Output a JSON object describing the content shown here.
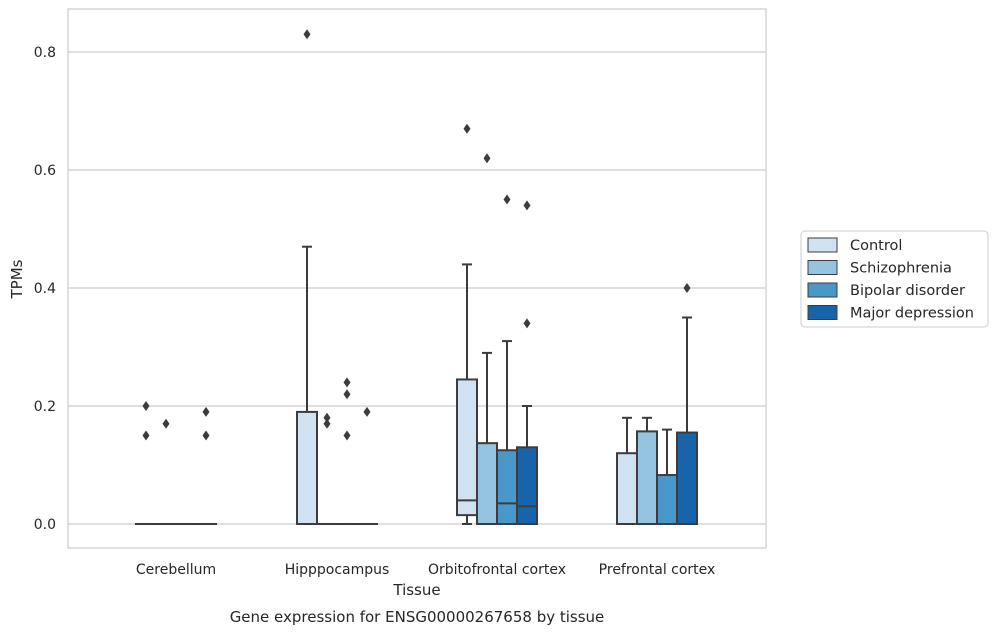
{
  "chart_data": {
    "type": "box",
    "title": "",
    "caption": "Gene expression for ENSG00000267658 by tissue",
    "xlabel": "Tissue",
    "ylabel": "TPMs",
    "ylim": [
      -0.04,
      0.87
    ],
    "yticks": [
      0.0,
      0.2,
      0.4,
      0.6,
      0.8
    ],
    "ytick_labels": [
      "0.0",
      "0.2",
      "0.4",
      "0.6",
      "0.8"
    ],
    "grid": "horizontal",
    "legend_position": "right",
    "categories": [
      "Cerebellum",
      "Hipppocampus",
      "Orbitofrontal cortex",
      "Prefrontal cortex"
    ],
    "series": [
      {
        "name": "Control",
        "color": "#d0e1f2",
        "boxes": [
          {
            "q1": 0,
            "median": 0,
            "q3": 0,
            "wlow": 0,
            "whigh": 0,
            "outliers": [
              0.15,
              0.2
            ]
          },
          {
            "q1": 0,
            "median": 0,
            "q3": 0.19,
            "wlow": 0,
            "whigh": 0.47,
            "outliers": [
              0.83
            ]
          },
          {
            "q1": 0.015,
            "median": 0.04,
            "q3": 0.245,
            "wlow": 0,
            "whigh": 0.44,
            "outliers": [
              0.67
            ]
          },
          {
            "q1": 0,
            "median": 0,
            "q3": 0.12,
            "wlow": 0,
            "whigh": 0.18,
            "outliers": []
          }
        ]
      },
      {
        "name": "Schizophrenia",
        "color": "#94c4df",
        "boxes": [
          {
            "q1": 0,
            "median": 0,
            "q3": 0,
            "wlow": 0,
            "whigh": 0,
            "outliers": [
              0.17
            ]
          },
          {
            "q1": 0,
            "median": 0,
            "q3": 0,
            "wlow": 0,
            "whigh": 0,
            "outliers": [
              0.17,
              0.18
            ]
          },
          {
            "q1": 0,
            "median": 0,
            "q3": 0.137,
            "wlow": 0,
            "whigh": 0.29,
            "outliers": [
              0.62
            ]
          },
          {
            "q1": 0,
            "median": 0,
            "q3": 0.157,
            "wlow": 0,
            "whigh": 0.18,
            "outliers": []
          }
        ]
      },
      {
        "name": "Bipolar disorder",
        "color": "#4a98c9",
        "boxes": [
          {
            "q1": 0,
            "median": 0,
            "q3": 0,
            "wlow": 0,
            "whigh": 0,
            "outliers": []
          },
          {
            "q1": 0,
            "median": 0,
            "q3": 0,
            "wlow": 0,
            "whigh": 0,
            "outliers": [
              0.15,
              0.22,
              0.24
            ]
          },
          {
            "q1": 0,
            "median": 0.035,
            "q3": 0.125,
            "wlow": 0,
            "whigh": 0.31,
            "outliers": [
              0.55
            ]
          },
          {
            "q1": 0,
            "median": 0,
            "q3": 0.083,
            "wlow": 0,
            "whigh": 0.16,
            "outliers": []
          }
        ]
      },
      {
        "name": "Major depression",
        "color": "#1764ab",
        "boxes": [
          {
            "q1": 0,
            "median": 0,
            "q3": 0,
            "wlow": 0,
            "whigh": 0,
            "outliers": [
              0.15,
              0.19
            ]
          },
          {
            "q1": 0,
            "median": 0,
            "q3": 0,
            "wlow": 0,
            "whigh": 0,
            "outliers": [
              0.19
            ]
          },
          {
            "q1": 0,
            "median": 0.03,
            "q3": 0.13,
            "wlow": 0,
            "whigh": 0.2,
            "outliers": [
              0.34,
              0.54
            ]
          },
          {
            "q1": 0,
            "median": 0,
            "q3": 0.155,
            "wlow": 0,
            "whigh": 0.35,
            "outliers": [
              0.4
            ]
          }
        ]
      }
    ]
  }
}
